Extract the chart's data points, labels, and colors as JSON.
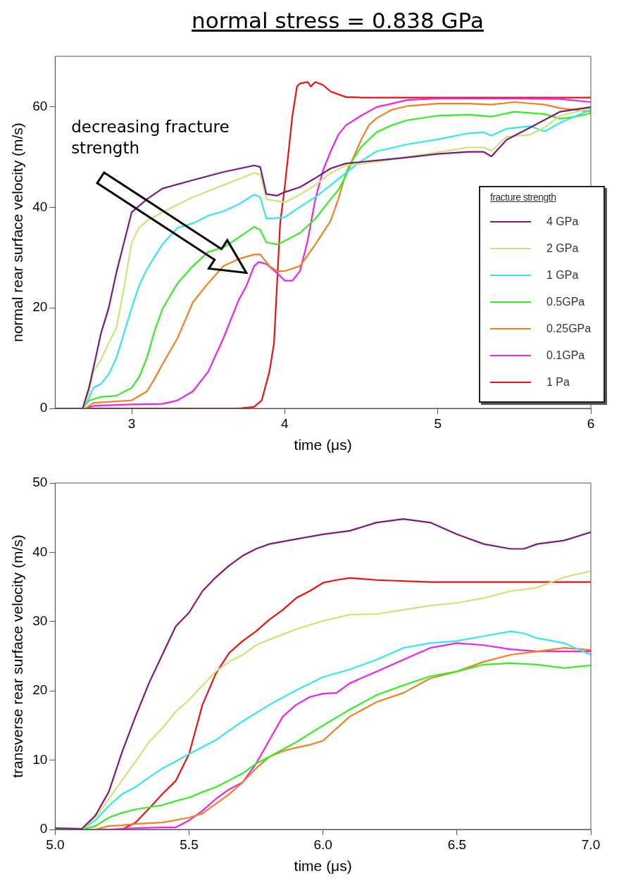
{
  "chart_data": [
    {
      "type": "line",
      "title": "normal stress = 0.838 GPa",
      "xlabel": "time (μs)",
      "ylabel": "normal rear surface velocity (m/s)",
      "legend_title": "fracture strength",
      "legend": "bottom right",
      "annotations": [
        "decreasing fracture strength"
      ],
      "xlim": [
        2.5,
        6
      ],
      "xticks": [
        3,
        4,
        5,
        6
      ],
      "ylim": [
        0,
        70
      ],
      "yticks": [
        0,
        20,
        40,
        60
      ],
      "series": [
        {
          "name": "4 GPa",
          "color": "#7b1a7b",
          "x": [
            2.5,
            2.68,
            2.72,
            2.75,
            2.8,
            2.85,
            2.9,
            2.95,
            3.0,
            3.1,
            3.2,
            3.4,
            3.6,
            3.8,
            3.84,
            3.88,
            3.95,
            4.0,
            4.1,
            4.2,
            4.3,
            4.4,
            4.6,
            4.8,
            5.0,
            5.2,
            5.3,
            5.35,
            5.45,
            5.6,
            5.8,
            6.0
          ],
          "values": [
            0,
            0,
            4,
            8,
            15,
            20,
            27,
            33,
            39,
            41.6,
            43.7,
            45.4,
            47,
            48.3,
            48,
            42.6,
            42.3,
            43,
            44,
            45.8,
            47.7,
            48.7,
            49.3,
            49.9,
            50.6,
            51,
            51,
            50.1,
            53.4,
            55.8,
            59,
            59.9
          ]
        },
        {
          "name": "2 GPa",
          "color": "#c8e67a",
          "x": [
            2.5,
            2.68,
            2.72,
            2.75,
            2.8,
            2.85,
            2.9,
            2.95,
            3.0,
            3.05,
            3.1,
            3.2,
            3.4,
            3.6,
            3.8,
            3.84,
            3.88,
            4.0,
            4.1,
            4.2,
            4.3,
            4.4,
            4.6,
            4.8,
            5.0,
            5.2,
            5.3,
            5.35,
            5.45,
            5.6,
            5.7,
            5.8,
            6.0
          ],
          "values": [
            0,
            0,
            3,
            7.3,
            9.7,
            13,
            16,
            24,
            33,
            36,
            37.3,
            39,
            42,
            44.4,
            46.8,
            46.5,
            41.6,
            41,
            42.5,
            44.4,
            46.8,
            48.3,
            49,
            50,
            50.9,
            51.9,
            51.9,
            51.2,
            54,
            54.4,
            55.9,
            58.2,
            59.7
          ]
        },
        {
          "name": "1 GPa",
          "color": "#33e6f0",
          "x": [
            2.5,
            2.68,
            2.72,
            2.75,
            2.8,
            2.85,
            2.9,
            2.95,
            3.0,
            3.05,
            3.1,
            3.2,
            3.3,
            3.4,
            3.5,
            3.6,
            3.7,
            3.8,
            3.84,
            3.88,
            4.0,
            4.1,
            4.2,
            4.3,
            4.4,
            4.5,
            4.6,
            4.8,
            5.0,
            5.2,
            5.3,
            5.35,
            5.45,
            5.6,
            5.7,
            5.8,
            6.0
          ],
          "values": [
            0,
            0,
            2,
            4.1,
            4.9,
            6.8,
            10,
            15,
            20,
            24.5,
            27.7,
            32.6,
            35.9,
            36.8,
            38.3,
            39.2,
            40.6,
            42.5,
            42,
            37.7,
            38,
            40.1,
            42,
            44.4,
            46.8,
            49.2,
            51.1,
            52.5,
            53.5,
            54.7,
            54.9,
            54.2,
            55.6,
            56.1,
            55.1,
            56.8,
            59.4
          ]
        },
        {
          "name": "0.5GPa",
          "color": "#33ee22",
          "x": [
            2.5,
            2.68,
            2.72,
            2.8,
            2.9,
            3.0,
            3.05,
            3.1,
            3.15,
            3.2,
            3.3,
            3.4,
            3.5,
            3.6,
            3.7,
            3.8,
            3.84,
            3.88,
            3.95,
            4.0,
            4.1,
            4.2,
            4.3,
            4.35,
            4.4,
            4.45,
            4.5,
            4.6,
            4.7,
            4.8,
            5.0,
            5.2,
            5.35,
            5.5,
            5.7,
            5.8,
            5.9,
            6.0
          ],
          "values": [
            0,
            0,
            1.5,
            2.3,
            2.5,
            4.1,
            6.3,
            10.1,
            15.4,
            19.7,
            24.9,
            28.3,
            31.1,
            32,
            34,
            36.1,
            35.5,
            33,
            32.6,
            33.3,
            34.9,
            37.7,
            41.6,
            43.4,
            46.3,
            49.7,
            52,
            54.9,
            56.3,
            57.3,
            58.2,
            58.4,
            58,
            59,
            58.5,
            57.6,
            58,
            58.7
          ]
        },
        {
          "name": "0.25GPa",
          "color": "#f08020",
          "x": [
            2.5,
            2.7,
            2.75,
            2.9,
            3.0,
            3.1,
            3.15,
            3.2,
            3.3,
            3.4,
            3.5,
            3.6,
            3.7,
            3.8,
            3.84,
            3.9,
            3.95,
            4.0,
            4.1,
            4.2,
            4.3,
            4.35,
            4.4,
            4.45,
            4.5,
            4.55,
            4.6,
            4.7,
            4.8,
            5.0,
            5.2,
            5.35,
            5.5,
            5.7,
            5.8,
            6.0
          ],
          "values": [
            0,
            0,
            1.1,
            1.4,
            1.6,
            3.4,
            5.9,
            8.7,
            14,
            21.1,
            24.9,
            28.3,
            29.7,
            30.6,
            30.6,
            28.3,
            27.3,
            27.3,
            28.3,
            32.6,
            37.3,
            41.6,
            46.8,
            50,
            53.4,
            56.3,
            57.7,
            59.4,
            60.1,
            60.6,
            60.6,
            60.4,
            60.9,
            60.4,
            59.7,
            59
          ]
        },
        {
          "name": "0.1GPa",
          "color": "#ee22ee",
          "x": [
            2.5,
            2.7,
            2.75,
            3.0,
            3.2,
            3.3,
            3.4,
            3.5,
            3.6,
            3.7,
            3.75,
            3.8,
            3.83,
            3.88,
            3.95,
            4.0,
            4.05,
            4.1,
            4.15,
            4.2,
            4.25,
            4.3,
            4.35,
            4.4,
            4.5,
            4.6,
            4.7,
            4.8,
            5.0,
            5.5,
            5.8,
            6.0
          ],
          "values": [
            0,
            0,
            0.5,
            0.8,
            0.9,
            1.6,
            3.4,
            7.3,
            14,
            21.6,
            24.4,
            28.3,
            29.1,
            28.7,
            26.9,
            25.4,
            25.4,
            27.3,
            33.4,
            41.6,
            47.3,
            51.1,
            54.4,
            56.3,
            58.2,
            59.9,
            60.6,
            61.3,
            61.6,
            61.6,
            61.5,
            60.9
          ]
        },
        {
          "name": "1 Pa",
          "color": "#ee1111",
          "x": [
            2.5,
            3.7,
            3.8,
            3.85,
            3.9,
            3.93,
            3.97,
            4.0,
            4.05,
            4.08,
            4.1,
            4.15,
            4.17,
            4.2,
            4.25,
            4.3,
            4.4,
            4.5,
            5.0,
            6.0
          ],
          "values": [
            0,
            0,
            0.3,
            1.6,
            7.3,
            13,
            36.8,
            44,
            58.2,
            64,
            64.6,
            64.9,
            64,
            64.9,
            64.3,
            63,
            61.9,
            61.8,
            61.8,
            61.8
          ]
        }
      ]
    },
    {
      "type": "line",
      "xlabel": "time (μs)",
      "ylabel": "transverse rear surface velocity (m/s)",
      "xlim": [
        5,
        7
      ],
      "xticks": [
        {
          "value": 5,
          "label": "5.0"
        },
        {
          "value": 5.5,
          "label": "5.5"
        },
        {
          "value": 6,
          "label": "6.0"
        },
        {
          "value": 6.5,
          "label": "6.5"
        },
        {
          "value": 7,
          "label": "7.0"
        }
      ],
      "ylim": [
        0,
        50
      ],
      "yticks": [
        0,
        10,
        20,
        30,
        40,
        50
      ],
      "series": [
        {
          "color": "#7b1a7b",
          "x": [
            5.0,
            5.1,
            5.15,
            5.2,
            5.25,
            5.3,
            5.35,
            5.4,
            5.45,
            5.5,
            5.55,
            5.6,
            5.65,
            5.7,
            5.75,
            5.8,
            5.9,
            6.0,
            6.1,
            6.2,
            6.3,
            6.4,
            6.5,
            6.6,
            6.7,
            6.75,
            6.8,
            6.9,
            7.0
          ],
          "values": [
            0.2,
            0.1,
            2,
            5.4,
            11.2,
            16.3,
            21.1,
            25.2,
            29.3,
            31.3,
            34.4,
            36.4,
            38.1,
            39.5,
            40.5,
            41.2,
            41.9,
            42.6,
            43.1,
            44.3,
            44.8,
            44.3,
            42.6,
            41.2,
            40.5,
            40.5,
            41.2,
            41.7,
            42.9
          ]
        },
        {
          "color": "#c8e67a",
          "x": [
            5.0,
            5.1,
            5.15,
            5.2,
            5.25,
            5.3,
            5.35,
            5.4,
            5.45,
            5.5,
            5.55,
            5.6,
            5.65,
            5.7,
            5.75,
            5.8,
            5.9,
            6.0,
            6.1,
            6.2,
            6.3,
            6.4,
            6.5,
            6.6,
            6.7,
            6.8,
            6.9,
            7.0
          ],
          "values": [
            0,
            0,
            1.7,
            4.4,
            7.1,
            9.8,
            12.6,
            14.6,
            17,
            18.7,
            20.8,
            22.8,
            24.2,
            25.2,
            26.6,
            27.4,
            28.9,
            30.1,
            31,
            31.1,
            31.7,
            32.3,
            32.7,
            33.4,
            34.4,
            34.9,
            36.4,
            37.3
          ]
        },
        {
          "color": "#33e6f0",
          "x": [
            5.0,
            5.1,
            5.15,
            5.2,
            5.25,
            5.3,
            5.35,
            5.4,
            5.45,
            5.5,
            5.55,
            5.6,
            5.65,
            5.7,
            5.75,
            5.8,
            5.9,
            6.0,
            6.1,
            6.2,
            6.3,
            6.4,
            6.5,
            6.6,
            6.7,
            6.75,
            6.8,
            6.9,
            7.0
          ],
          "values": [
            0,
            0,
            1.3,
            3.4,
            5.1,
            6.1,
            7.5,
            8.8,
            9.8,
            10.9,
            11.9,
            12.9,
            14.3,
            15.6,
            16.8,
            18,
            20.1,
            22,
            23.1,
            24.5,
            26.2,
            26.9,
            27.2,
            27.9,
            28.6,
            28.3,
            27.6,
            26.9,
            25.2
          ]
        },
        {
          "color": "#33ee22",
          "x": [
            5.0,
            5.1,
            5.15,
            5.2,
            5.25,
            5.3,
            5.35,
            5.4,
            5.45,
            5.5,
            5.55,
            5.6,
            5.65,
            5.7,
            5.75,
            5.8,
            5.9,
            6.0,
            6.1,
            6.2,
            6.3,
            6.4,
            6.5,
            6.6,
            6.7,
            6.8,
            6.9,
            7.0
          ],
          "values": [
            0,
            0,
            0.5,
            1.7,
            2.4,
            2.9,
            3.2,
            3.5,
            4.1,
            4.6,
            5.4,
            6.1,
            7.1,
            8.1,
            9.5,
            10.5,
            12.6,
            15,
            17.3,
            19.4,
            20.8,
            22.1,
            22.8,
            23.8,
            24,
            23.8,
            23.3,
            23.7
          ]
        },
        {
          "color": "#f08020",
          "x": [
            5.0,
            5.15,
            5.2,
            5.25,
            5.3,
            5.4,
            5.5,
            5.55,
            5.6,
            5.65,
            5.7,
            5.75,
            5.8,
            5.85,
            5.9,
            5.95,
            6.0,
            6.1,
            6.2,
            6.3,
            6.4,
            6.5,
            6.6,
            6.7,
            6.8,
            6.9,
            7.0
          ],
          "values": [
            0,
            0,
            0.5,
            0.6,
            0.8,
            1,
            1.7,
            2.3,
            3.7,
            5.1,
            6.8,
            8.8,
            10.5,
            11.3,
            11.8,
            12.2,
            12.8,
            16.3,
            18.4,
            19.7,
            21.8,
            22.8,
            24.2,
            25.2,
            25.7,
            26.2,
            25.9
          ]
        },
        {
          "color": "#ee22ee",
          "x": [
            5.0,
            5.2,
            5.3,
            5.4,
            5.45,
            5.5,
            5.55,
            5.6,
            5.65,
            5.7,
            5.75,
            5.8,
            5.85,
            5.9,
            5.95,
            6.0,
            6.05,
            6.1,
            6.2,
            6.3,
            6.4,
            6.5,
            6.6,
            6.7,
            6.8,
            7.0
          ],
          "values": [
            0,
            0,
            0.2,
            0.3,
            0.3,
            1.3,
            2.7,
            4.4,
            5.8,
            6.8,
            9.5,
            12.9,
            16.3,
            18,
            19.1,
            19.6,
            19.7,
            21.1,
            22.8,
            24.5,
            26.2,
            26.9,
            26.6,
            26,
            25.7,
            25.7
          ]
        },
        {
          "color": "#ee1111",
          "x": [
            5.0,
            5.25,
            5.3,
            5.35,
            5.4,
            5.45,
            5.5,
            5.55,
            5.6,
            5.65,
            5.7,
            5.75,
            5.8,
            5.85,
            5.9,
            5.95,
            6.0,
            6.05,
            6.1,
            6.2,
            6.4,
            7.0
          ],
          "values": [
            0,
            0,
            1,
            3,
            5.1,
            7,
            10.9,
            18,
            22.5,
            25.5,
            27.2,
            28.6,
            30.3,
            31.7,
            33.4,
            34.4,
            35.6,
            36,
            36.3,
            36,
            35.7,
            35.7
          ]
        }
      ]
    }
  ]
}
